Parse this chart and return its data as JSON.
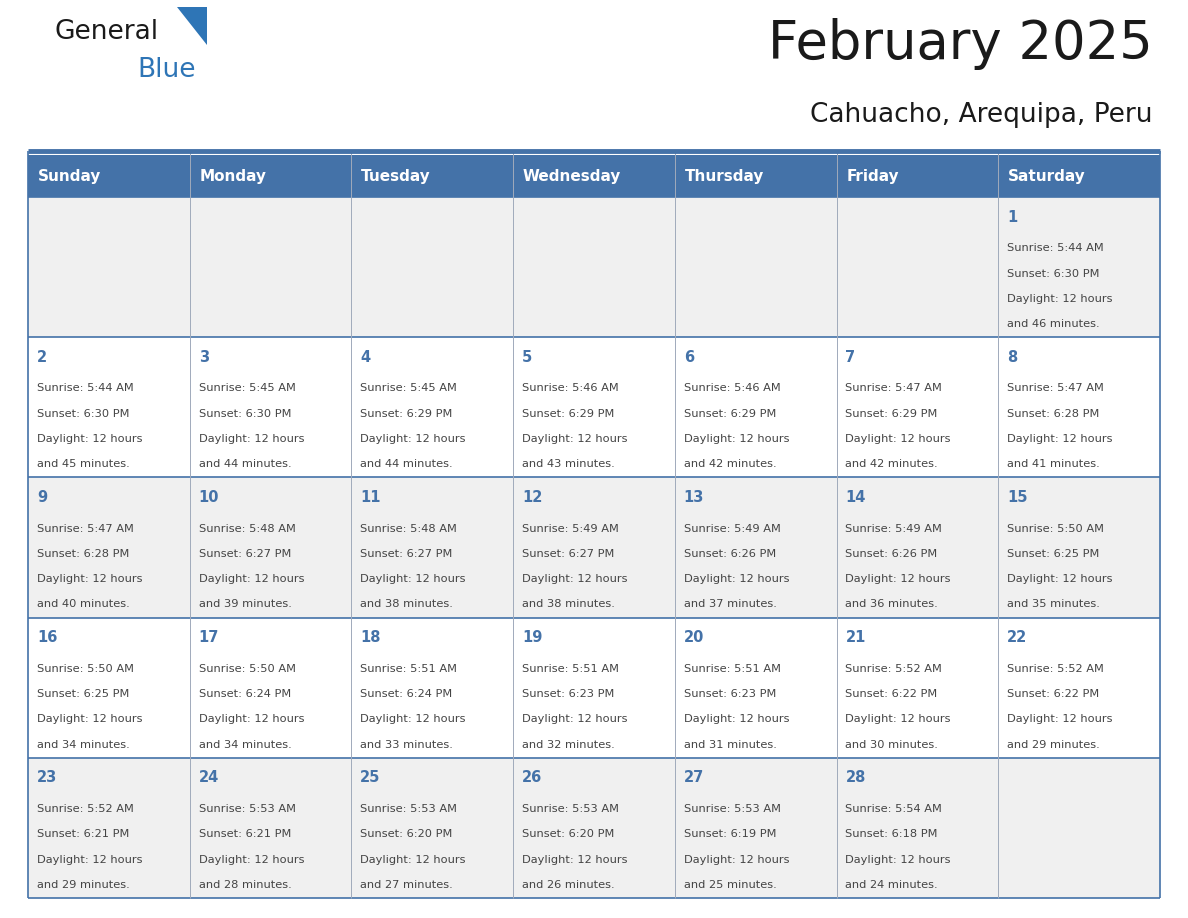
{
  "title": "February 2025",
  "subtitle": "Cahuacho, Arequipa, Peru",
  "days_of_week": [
    "Sunday",
    "Monday",
    "Tuesday",
    "Wednesday",
    "Thursday",
    "Friday",
    "Saturday"
  ],
  "header_bg": "#4472A8",
  "header_text": "#FFFFFF",
  "row_bg_odd": "#F0F0F0",
  "row_bg_even": "#FFFFFF",
  "day_number_color": "#4472A8",
  "text_color": "#444444",
  "line_color": "#4472A8",
  "border_color": "#4472A8",
  "title_color": "#1a1a1a",
  "weeks": [
    {
      "days": [
        {
          "num": "",
          "sunrise": "",
          "sunset": "",
          "daylight_h": "",
          "daylight_m": ""
        },
        {
          "num": "",
          "sunrise": "",
          "sunset": "",
          "daylight_h": "",
          "daylight_m": ""
        },
        {
          "num": "",
          "sunrise": "",
          "sunset": "",
          "daylight_h": "",
          "daylight_m": ""
        },
        {
          "num": "",
          "sunrise": "",
          "sunset": "",
          "daylight_h": "",
          "daylight_m": ""
        },
        {
          "num": "",
          "sunrise": "",
          "sunset": "",
          "daylight_h": "",
          "daylight_m": ""
        },
        {
          "num": "",
          "sunrise": "",
          "sunset": "",
          "daylight_h": "",
          "daylight_m": ""
        },
        {
          "num": "1",
          "sunrise": "5:44 AM",
          "sunset": "6:30 PM",
          "daylight_h": "12",
          "daylight_m": "46"
        }
      ]
    },
    {
      "days": [
        {
          "num": "2",
          "sunrise": "5:44 AM",
          "sunset": "6:30 PM",
          "daylight_h": "12",
          "daylight_m": "45"
        },
        {
          "num": "3",
          "sunrise": "5:45 AM",
          "sunset": "6:30 PM",
          "daylight_h": "12",
          "daylight_m": "44"
        },
        {
          "num": "4",
          "sunrise": "5:45 AM",
          "sunset": "6:29 PM",
          "daylight_h": "12",
          "daylight_m": "44"
        },
        {
          "num": "5",
          "sunrise": "5:46 AM",
          "sunset": "6:29 PM",
          "daylight_h": "12",
          "daylight_m": "43"
        },
        {
          "num": "6",
          "sunrise": "5:46 AM",
          "sunset": "6:29 PM",
          "daylight_h": "12",
          "daylight_m": "42"
        },
        {
          "num": "7",
          "sunrise": "5:47 AM",
          "sunset": "6:29 PM",
          "daylight_h": "12",
          "daylight_m": "42"
        },
        {
          "num": "8",
          "sunrise": "5:47 AM",
          "sunset": "6:28 PM",
          "daylight_h": "12",
          "daylight_m": "41"
        }
      ]
    },
    {
      "days": [
        {
          "num": "9",
          "sunrise": "5:47 AM",
          "sunset": "6:28 PM",
          "daylight_h": "12",
          "daylight_m": "40"
        },
        {
          "num": "10",
          "sunrise": "5:48 AM",
          "sunset": "6:27 PM",
          "daylight_h": "12",
          "daylight_m": "39"
        },
        {
          "num": "11",
          "sunrise": "5:48 AM",
          "sunset": "6:27 PM",
          "daylight_h": "12",
          "daylight_m": "38"
        },
        {
          "num": "12",
          "sunrise": "5:49 AM",
          "sunset": "6:27 PM",
          "daylight_h": "12",
          "daylight_m": "38"
        },
        {
          "num": "13",
          "sunrise": "5:49 AM",
          "sunset": "6:26 PM",
          "daylight_h": "12",
          "daylight_m": "37"
        },
        {
          "num": "14",
          "sunrise": "5:49 AM",
          "sunset": "6:26 PM",
          "daylight_h": "12",
          "daylight_m": "36"
        },
        {
          "num": "15",
          "sunrise": "5:50 AM",
          "sunset": "6:25 PM",
          "daylight_h": "12",
          "daylight_m": "35"
        }
      ]
    },
    {
      "days": [
        {
          "num": "16",
          "sunrise": "5:50 AM",
          "sunset": "6:25 PM",
          "daylight_h": "12",
          "daylight_m": "34"
        },
        {
          "num": "17",
          "sunrise": "5:50 AM",
          "sunset": "6:24 PM",
          "daylight_h": "12",
          "daylight_m": "34"
        },
        {
          "num": "18",
          "sunrise": "5:51 AM",
          "sunset": "6:24 PM",
          "daylight_h": "12",
          "daylight_m": "33"
        },
        {
          "num": "19",
          "sunrise": "5:51 AM",
          "sunset": "6:23 PM",
          "daylight_h": "12",
          "daylight_m": "32"
        },
        {
          "num": "20",
          "sunrise": "5:51 AM",
          "sunset": "6:23 PM",
          "daylight_h": "12",
          "daylight_m": "31"
        },
        {
          "num": "21",
          "sunrise": "5:52 AM",
          "sunset": "6:22 PM",
          "daylight_h": "12",
          "daylight_m": "30"
        },
        {
          "num": "22",
          "sunrise": "5:52 AM",
          "sunset": "6:22 PM",
          "daylight_h": "12",
          "daylight_m": "29"
        }
      ]
    },
    {
      "days": [
        {
          "num": "23",
          "sunrise": "5:52 AM",
          "sunset": "6:21 PM",
          "daylight_h": "12",
          "daylight_m": "29"
        },
        {
          "num": "24",
          "sunrise": "5:53 AM",
          "sunset": "6:21 PM",
          "daylight_h": "12",
          "daylight_m": "28"
        },
        {
          "num": "25",
          "sunrise": "5:53 AM",
          "sunset": "6:20 PM",
          "daylight_h": "12",
          "daylight_m": "27"
        },
        {
          "num": "26",
          "sunrise": "5:53 AM",
          "sunset": "6:20 PM",
          "daylight_h": "12",
          "daylight_m": "26"
        },
        {
          "num": "27",
          "sunrise": "5:53 AM",
          "sunset": "6:19 PM",
          "daylight_h": "12",
          "daylight_m": "25"
        },
        {
          "num": "28",
          "sunrise": "5:54 AM",
          "sunset": "6:18 PM",
          "daylight_h": "12",
          "daylight_m": "24"
        },
        {
          "num": "",
          "sunrise": "",
          "sunset": "",
          "daylight_h": "",
          "daylight_m": ""
        }
      ]
    }
  ]
}
